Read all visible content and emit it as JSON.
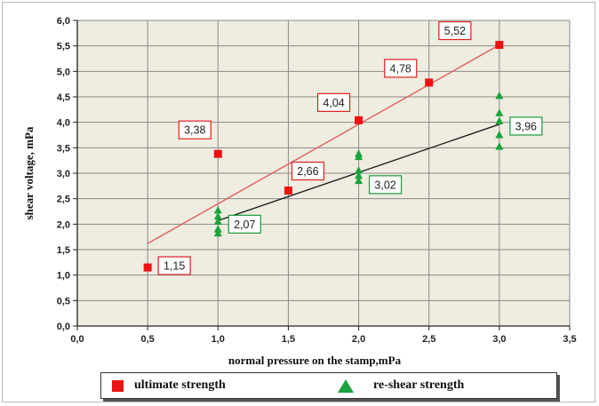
{
  "chart_data": {
    "type": "scatter",
    "title": "",
    "xlabel": "normal pressure on the stamp,mPa",
    "ylabel": "shear voltage, mPa",
    "xlim": [
      0,
      3.5
    ],
    "ylim": [
      0,
      6
    ],
    "x_ticks": [
      "0,0",
      "0,5",
      "1,0",
      "1,5",
      "2,0",
      "2,5",
      "3,0",
      "3,5"
    ],
    "y_ticks": [
      "0,0",
      "0,5",
      "1,0",
      "1,5",
      "2,0",
      "2,5",
      "3,0",
      "3,5",
      "4,0",
      "4,5",
      "5,0",
      "5,5",
      "6,0"
    ],
    "grid": true,
    "legend_position": "bottom",
    "series": [
      {
        "name": "ultimate strength",
        "marker": "square",
        "color": "#ee1111",
        "points": [
          [
            0.5,
            1.15
          ],
          [
            1.0,
            3.38
          ],
          [
            1.5,
            2.66
          ],
          [
            2.0,
            4.04
          ],
          [
            2.5,
            4.78
          ],
          [
            3.0,
            5.52
          ]
        ],
        "trendline": {
          "color": "#e06060",
          "from": [
            0.5,
            1.62
          ],
          "to": [
            3.0,
            5.52
          ]
        }
      },
      {
        "name": "re-shear strength",
        "marker": "triangle",
        "color": "#1aa33a",
        "points": [
          [
            1.0,
            1.82
          ],
          [
            1.0,
            1.9
          ],
          [
            1.0,
            2.05
          ],
          [
            1.0,
            2.15
          ],
          [
            1.0,
            2.27
          ],
          [
            2.0,
            2.85
          ],
          [
            2.0,
            2.95
          ],
          [
            2.0,
            3.05
          ],
          [
            2.0,
            3.32
          ],
          [
            2.0,
            3.38
          ],
          [
            3.0,
            3.52
          ],
          [
            3.0,
            3.75
          ],
          [
            3.0,
            4.02
          ],
          [
            3.0,
            4.18
          ],
          [
            3.0,
            4.52
          ]
        ],
        "trendline": {
          "color": "#222222",
          "from": [
            1.0,
            2.07
          ],
          "to": [
            3.0,
            3.96
          ]
        }
      }
    ],
    "annotations": [
      {
        "text": "1,15",
        "series": "ultimate strength",
        "x": 0.5,
        "y": 1.15
      },
      {
        "text": "3,38",
        "series": "ultimate strength",
        "x": 1.0,
        "y": 3.38
      },
      {
        "text": "2,66",
        "series": "ultimate strength",
        "x": 1.5,
        "y": 2.66
      },
      {
        "text": "4,04",
        "series": "ultimate strength",
        "x": 2.0,
        "y": 4.04
      },
      {
        "text": "4,78",
        "series": "ultimate strength",
        "x": 2.5,
        "y": 4.78
      },
      {
        "text": "5,52",
        "series": "ultimate strength",
        "x": 3.0,
        "y": 5.52
      },
      {
        "text": "2,07",
        "series": "re-shear strength",
        "x": 1.0,
        "y": 2.07
      },
      {
        "text": "3,02",
        "series": "re-shear strength",
        "x": 2.0,
        "y": 3.02
      },
      {
        "text": "3,96",
        "series": "re-shear strength",
        "x": 3.0,
        "y": 3.96
      }
    ]
  },
  "legend": {
    "ultimate_label": "ultimate strength",
    "reshear_label": "re-shear strength"
  }
}
